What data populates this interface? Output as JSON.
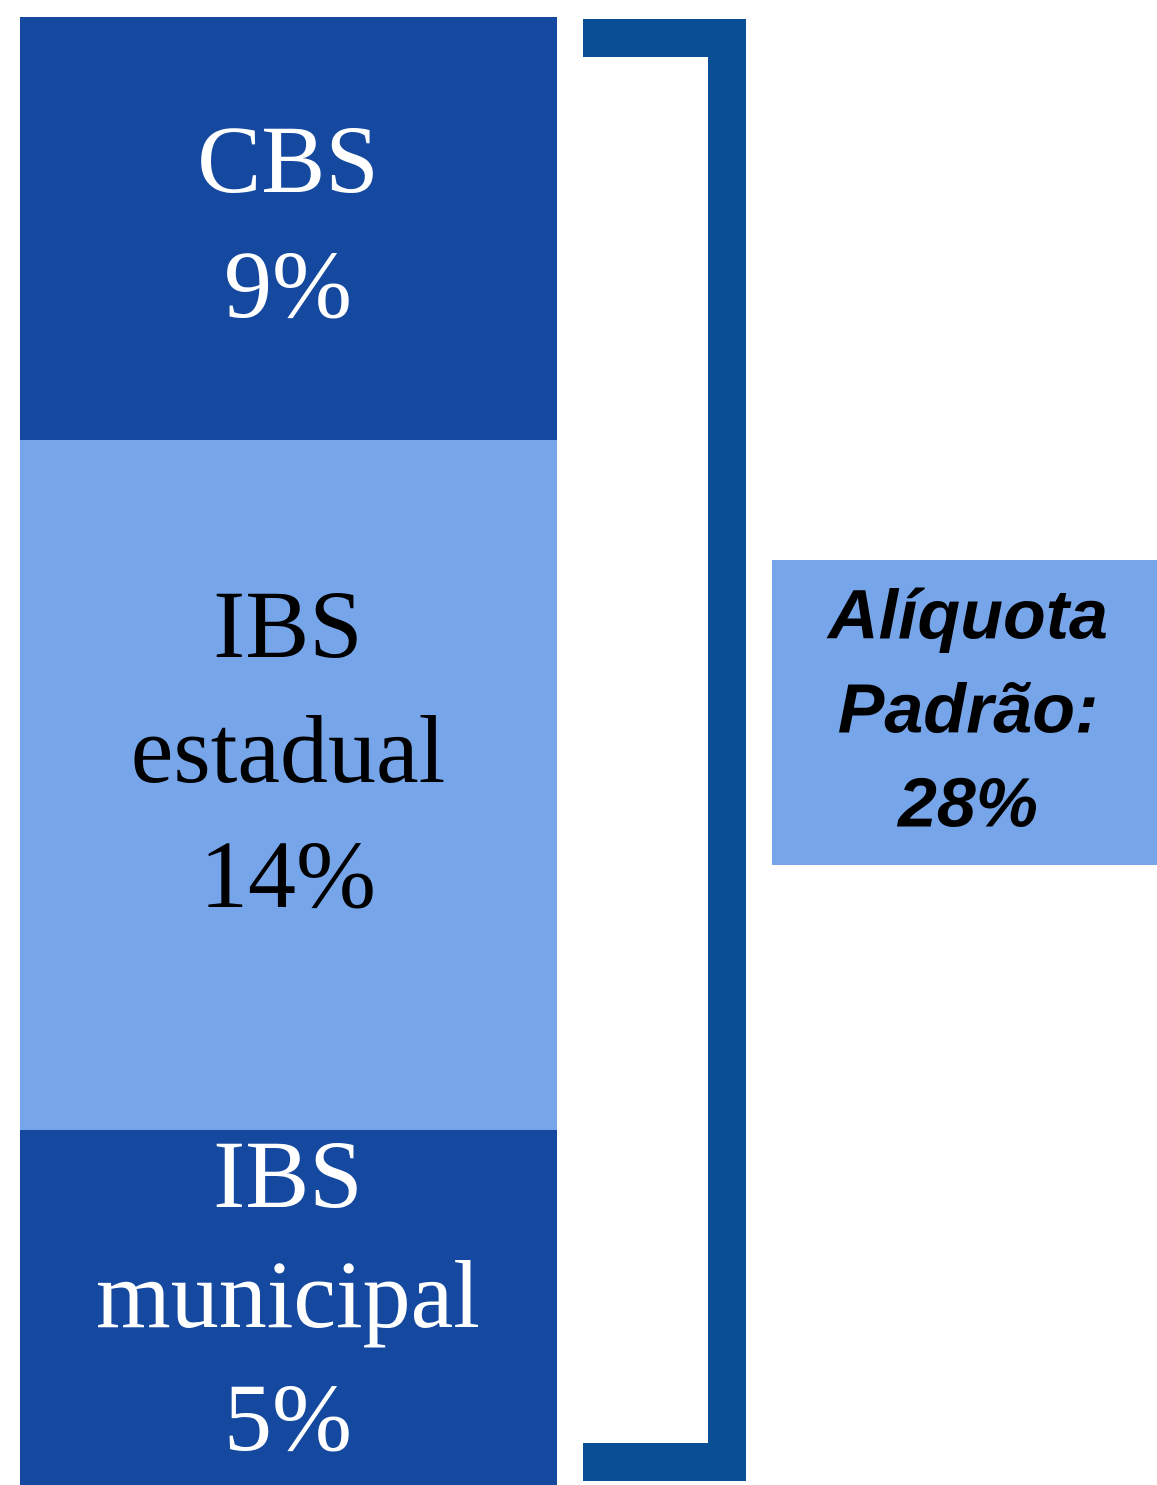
{
  "blocks": [
    {
      "lines": [
        "CBS",
        "9%"
      ]
    },
    {
      "lines": [
        "IBS",
        "estadual",
        "14%"
      ]
    },
    {
      "lines": [
        "IBS",
        "municipal",
        "5%"
      ]
    }
  ],
  "callout": {
    "lines": [
      "Alíquota",
      "Padrão:",
      "28%"
    ]
  }
}
